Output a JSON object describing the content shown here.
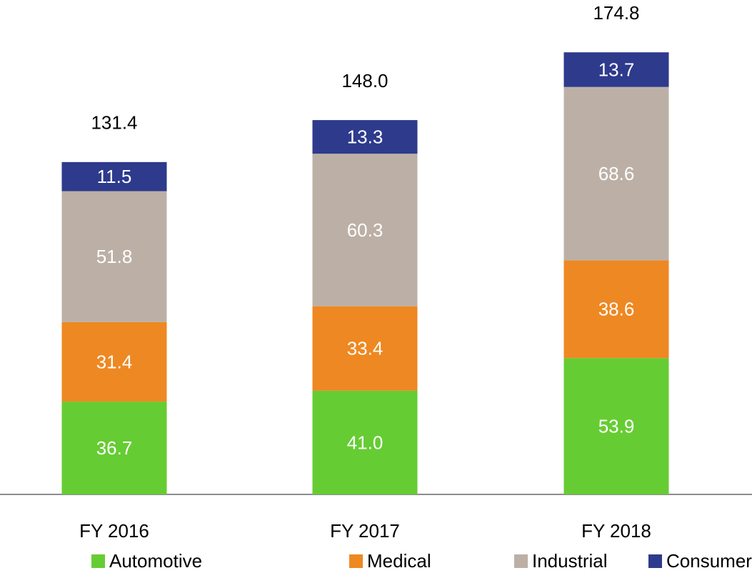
{
  "chart_data": {
    "type": "stacked_bar",
    "categories": [
      "FY 2016",
      "FY 2017",
      "FY 2018"
    ],
    "series": [
      {
        "name": "Automotive",
        "color": "#66cc33",
        "values": [
          36.7,
          41.0,
          53.9
        ],
        "value_labels": [
          "36.7",
          "41.0",
          "53.9"
        ]
      },
      {
        "name": "Medical",
        "color": "#ee8822",
        "values": [
          31.4,
          33.4,
          38.6
        ],
        "value_labels": [
          "31.4",
          "33.4",
          "38.6"
        ]
      },
      {
        "name": "Industrial",
        "color": "#bcb0a6",
        "values": [
          51.8,
          60.3,
          68.6
        ],
        "value_labels": [
          "51.8",
          "60.3",
          "68.6"
        ]
      },
      {
        "name": "Consumer",
        "color": "#2e3a8c",
        "values": [
          11.5,
          13.3,
          13.7
        ],
        "value_labels": [
          "11.5",
          "13.3",
          "13.7"
        ]
      }
    ],
    "totals": [
      131.4,
      148.0,
      174.8
    ],
    "total_labels": [
      "131.4",
      "148.0",
      "174.8"
    ],
    "legend": "bottom"
  }
}
